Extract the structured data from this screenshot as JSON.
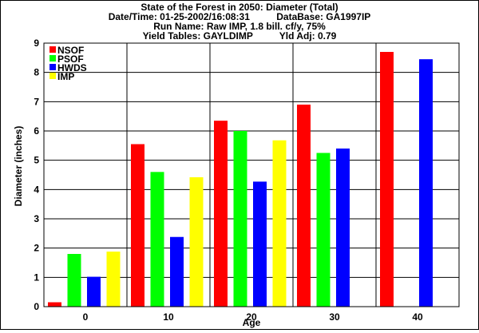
{
  "chart_data": {
    "type": "bar",
    "title_lines": [
      "State of the Forest in 2050: Diameter (Total)",
      "Date/Time: 01-25-2002/16:08:31          DataBase: GA1997IP",
      "Run Name: Raw IMP, 1.8 bill. cf/y, 75%",
      "Yield Tables: GAYLDIMP          Yld Adj: 0.79"
    ],
    "xlabel": "Age",
    "ylabel": "Diameter (inches)",
    "ylim": [
      0,
      9
    ],
    "yticks": [
      "0",
      "1",
      "2",
      "3",
      "4",
      "5",
      "6",
      "7",
      "8",
      "9"
    ],
    "categories": [
      "0",
      "10",
      "20",
      "30",
      "40"
    ],
    "grid": true,
    "legend_position": "top-left",
    "series": [
      {
        "name": "NSOF",
        "color": "#ff0000",
        "values": [
          0.15,
          5.55,
          6.35,
          6.9,
          8.7
        ]
      },
      {
        "name": "PSOF",
        "color": "#00ff00",
        "values": [
          1.8,
          4.6,
          6.0,
          5.25,
          null
        ]
      },
      {
        "name": "HWDS",
        "color": "#0000ff",
        "values": [
          1.02,
          2.38,
          4.27,
          5.4,
          8.45
        ]
      },
      {
        "name": "IMP",
        "color": "#ffff00",
        "values": [
          1.88,
          4.42,
          5.68,
          null,
          null
        ]
      }
    ]
  }
}
